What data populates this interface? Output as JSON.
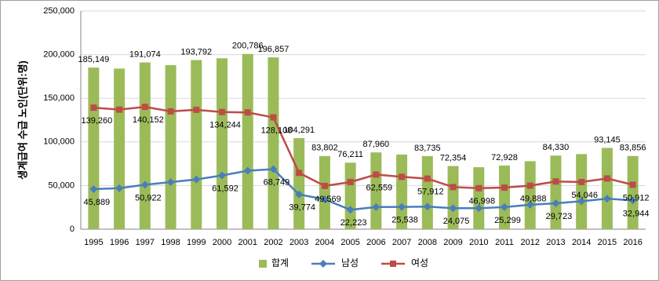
{
  "chart_data": {
    "type": "combo",
    "y_label": "생계급여 수급 노인(단위:명)",
    "categories": [
      "1995",
      "1996",
      "1997",
      "1998",
      "1999",
      "2000",
      "2001",
      "2002",
      "2003",
      "2004",
      "2005",
      "2006",
      "2007",
      "2008",
      "2009",
      "2010",
      "2011",
      "2012",
      "2013",
      "2014",
      "2015",
      "2016"
    ],
    "ylim": [
      0,
      250000
    ],
    "yticks": [
      0,
      {
        "value": 50000,
        "label": "50,000"
      },
      {
        "value": 100000,
        "label": "100,000"
      },
      {
        "value": 150000,
        "label": "150,000"
      },
      {
        "value": 200000,
        "label": "200,000"
      },
      {
        "value": 250000,
        "label": "250,000"
      }
    ],
    "grid": true,
    "legend": "bottom",
    "series": [
      {
        "name": "합계",
        "kind": "bar",
        "color": "#9bbb59",
        "values": [
          185149,
          184000,
          191074,
          188000,
          193792,
          195836,
          200786,
          196857,
          104291,
          83802,
          76211,
          87960,
          85538,
          83735,
          72354,
          70998,
          72928,
          77888,
          84330,
          86046,
          93145,
          83856
        ],
        "value_labels": [
          "185,149",
          null,
          "191,074",
          null,
          "193,792",
          null,
          "200,786",
          "196,857",
          "104,291",
          "83,802",
          "76,211",
          "87,960",
          null,
          "83,735",
          "72,354",
          null,
          "72,928",
          null,
          "84,330",
          null,
          "93,145",
          "83,856"
        ]
      },
      {
        "name": "남성",
        "kind": "line",
        "marker": "diamond",
        "color": "#4a7ebb",
        "values": [
          45889,
          47000,
          50922,
          54000,
          57000,
          61592,
          67000,
          68749,
          39774,
          34233,
          22223,
          25401,
          25538,
          25823,
          24075,
          24000,
          25299,
          28000,
          29723,
          32000,
          35000,
          32944
        ],
        "value_labels": [
          "45,889",
          null,
          "50,922",
          null,
          null,
          "61,592",
          null,
          "68,749",
          "39,774",
          null,
          "22,223",
          null,
          "25,538",
          null,
          "24,075",
          null,
          "25,299",
          null,
          "29,723",
          null,
          null,
          "32,944"
        ]
      },
      {
        "name": "여성",
        "kind": "line",
        "marker": "square",
        "color": "#be4b48",
        "values": [
          139260,
          137000,
          140152,
          135000,
          136792,
          134244,
          133786,
          128108,
          64517,
          49569,
          53988,
          62559,
          60000,
          57912,
          48279,
          46998,
          47629,
          49888,
          54607,
          54046,
          58145,
          50912
        ],
        "value_labels": [
          "139,260",
          null,
          "140,152",
          null,
          null,
          "134,244",
          null,
          "128,108",
          null,
          "49,569",
          null,
          "62,559",
          null,
          "57,912",
          null,
          "46,998",
          null,
          "49,888",
          null,
          "54,046",
          null,
          "50,912"
        ]
      }
    ]
  }
}
